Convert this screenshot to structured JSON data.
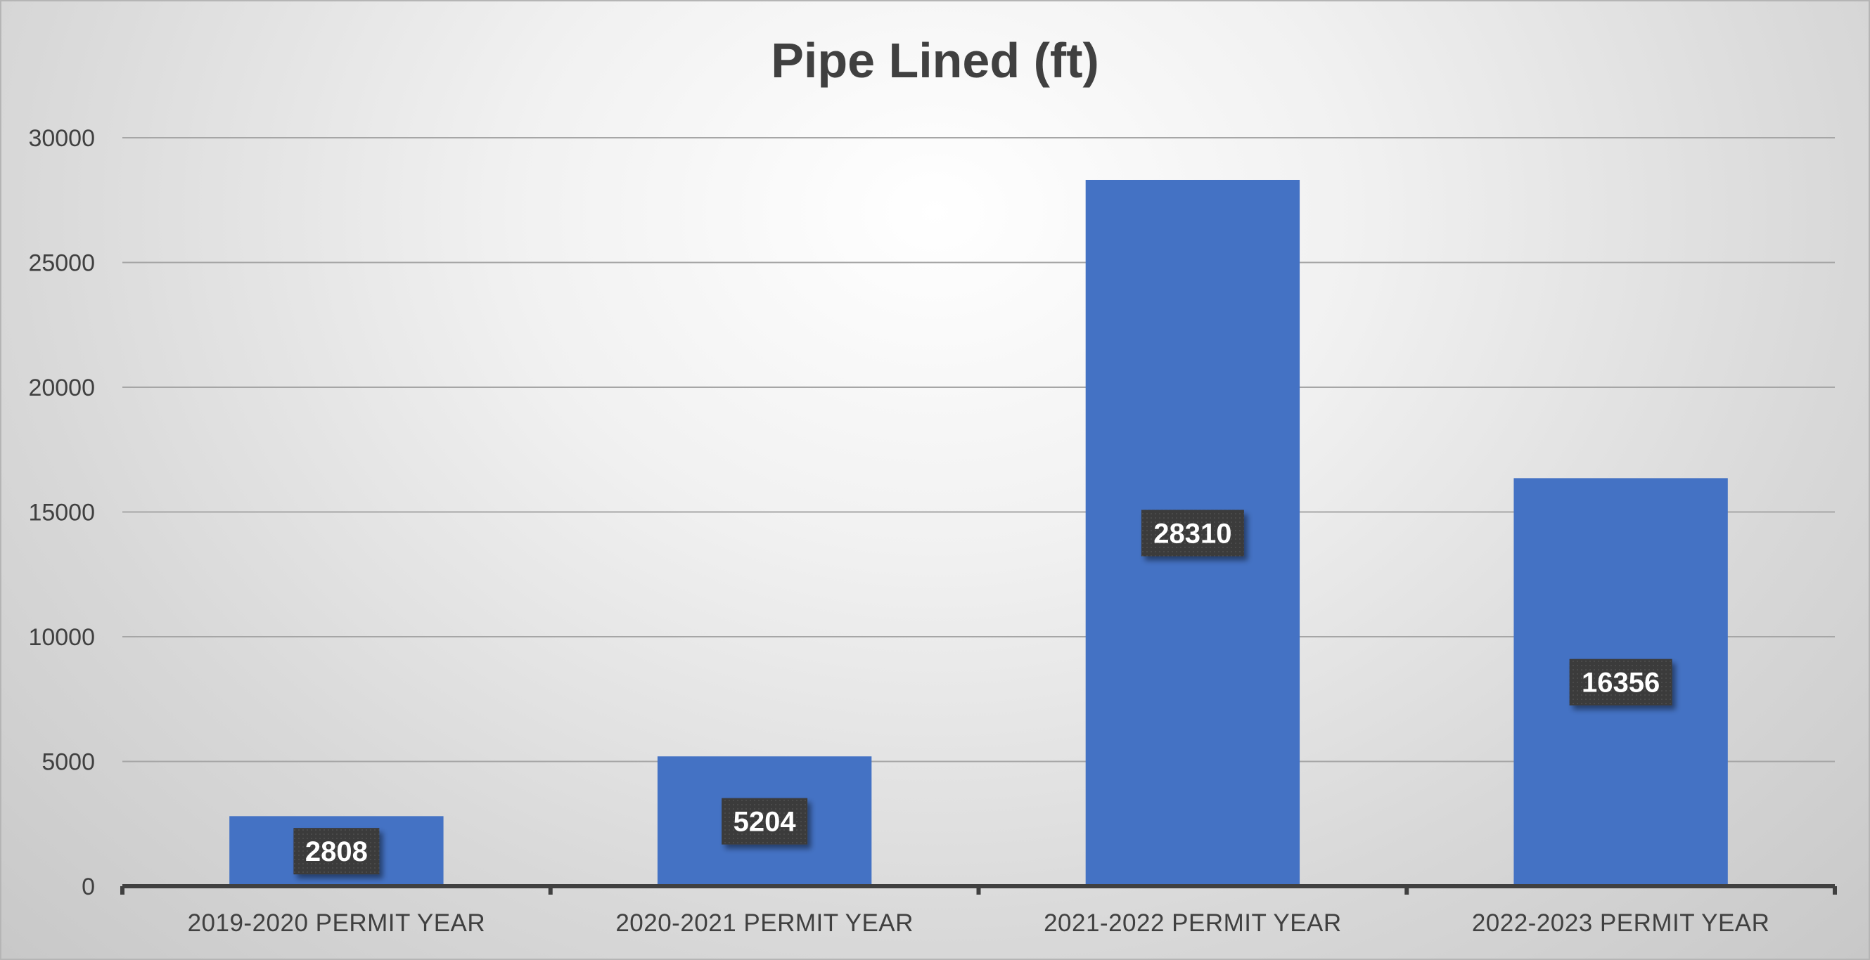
{
  "chart_data": {
    "type": "bar",
    "title": "Pipe Lined (ft)",
    "categories": [
      "2019-2020 PERMIT YEAR",
      "2020-2021 PERMIT YEAR",
      "2021-2022 PERMIT YEAR",
      "2022-2023 PERMIT YEAR"
    ],
    "values": [
      2808,
      5204,
      28310,
      16356
    ],
    "data_labels": [
      "2808",
      "5204",
      "28310",
      "16356"
    ],
    "yticks": [
      "0",
      "5000",
      "10000",
      "15000",
      "20000",
      "25000",
      "30000"
    ],
    "ylim": [
      0,
      30000
    ],
    "xlabel": "",
    "ylabel": "",
    "grid": true,
    "legend": "none",
    "colors": {
      "bar": "#4472C4",
      "gridline": "#a6a6a6",
      "axis": "#404040",
      "label_box": "#3a3a3a"
    }
  }
}
